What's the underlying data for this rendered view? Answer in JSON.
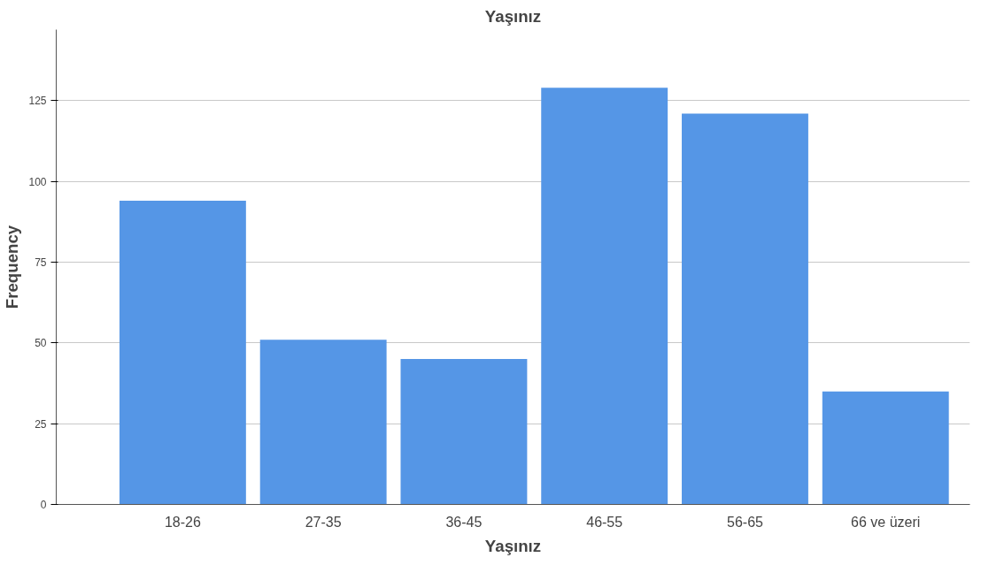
{
  "chart_data": {
    "type": "bar",
    "title": "Yaşınız",
    "xlabel": "Yaşınız",
    "ylabel": "Frequency",
    "categories": [
      "18-26",
      "27-35",
      "36-45",
      "46-55",
      "56-65",
      "66 ve üzeri"
    ],
    "values": [
      94,
      51,
      45,
      129,
      121,
      35
    ],
    "color": "#5596e6",
    "ylim": [
      0,
      147
    ],
    "yticks": [
      0,
      25,
      50,
      75,
      100,
      125
    ],
    "grid": "y"
  }
}
